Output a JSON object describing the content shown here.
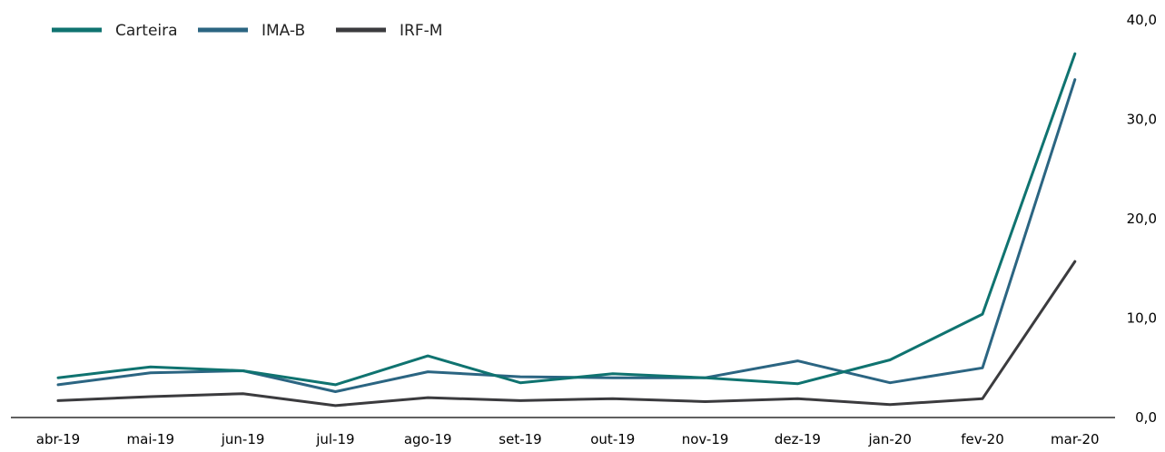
{
  "chart_data": {
    "type": "line",
    "categories": [
      "abr-19",
      "mai-19",
      "jun-19",
      "jul-19",
      "ago-19",
      "set-19",
      "out-19",
      "nov-19",
      "dez-19",
      "jan-20",
      "fev-20",
      "mar-20"
    ],
    "series": [
      {
        "name": "Carteira",
        "color": "#0f7370",
        "values": [
          4.0,
          5.1,
          4.7,
          3.3,
          6.2,
          3.5,
          4.4,
          4.0,
          3.4,
          5.8,
          10.4,
          36.6
        ]
      },
      {
        "name": "IMA-B",
        "color": "#2b6582",
        "values": [
          3.3,
          4.5,
          4.7,
          2.6,
          4.6,
          4.1,
          4.0,
          4.0,
          5.7,
          3.5,
          5.0,
          34.0
        ]
      },
      {
        "name": "IRF-M",
        "color": "#3b3b3e",
        "values": [
          1.7,
          2.1,
          2.4,
          1.2,
          2.0,
          1.7,
          1.9,
          1.6,
          1.9,
          1.3,
          1.9,
          15.7
        ]
      }
    ],
    "y_axis": {
      "position": "right",
      "ylim": [
        0,
        40
      ],
      "ticks": [
        "0,0",
        "10,0",
        "20,0",
        "30,0",
        "40,0"
      ]
    },
    "xlabel": "",
    "ylabel": "",
    "grid": false,
    "legend": "top-left"
  }
}
